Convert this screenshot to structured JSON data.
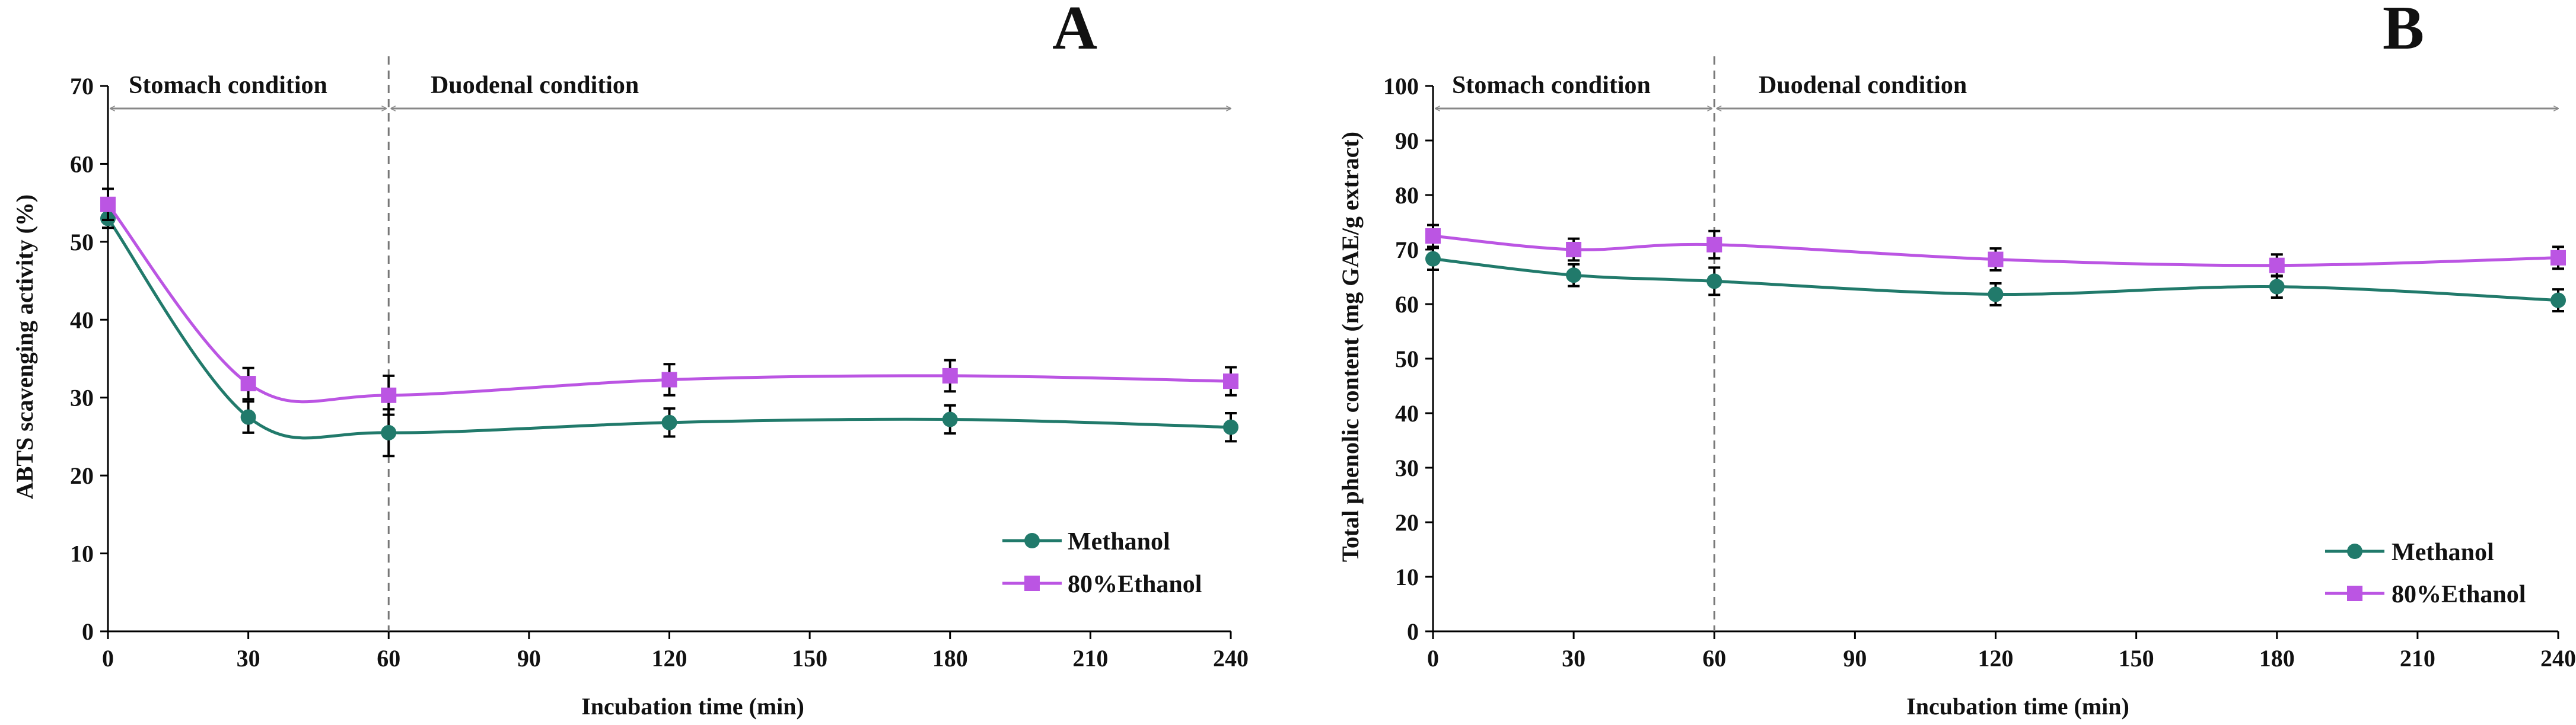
{
  "colors": {
    "methanol": "#217a6b",
    "ethanol": "#bb55e3",
    "axis": "#000000",
    "divider": "#777777",
    "arrow": "#888888"
  },
  "chart_data": [
    {
      "panel": "A",
      "type": "line",
      "xlabel": "Incubation time (min)",
      "ylabel": "ABTS scavenging activity (%)",
      "xlim": [
        0,
        240
      ],
      "ylim": [
        0,
        70
      ],
      "xticks": [
        0,
        30,
        60,
        90,
        120,
        150,
        180,
        210,
        240
      ],
      "yticks": [
        0,
        10,
        20,
        30,
        40,
        50,
        60,
        70
      ],
      "grid": false,
      "legend_position": "bottom-right",
      "divider_x": 60,
      "stomach_label": "Stomach  condition",
      "duodenal_label": "Duodenal condition",
      "series": [
        {
          "name": "Methanol",
          "marker": "circle",
          "x": [
            0,
            30,
            60,
            120,
            180,
            240
          ],
          "values": [
            53,
            27.5,
            25.5,
            26.8,
            27.2,
            26.2
          ],
          "errors": [
            1.2,
            2.0,
            3.0,
            1.8,
            1.8,
            1.8
          ]
        },
        {
          "name": "80%Ethanol",
          "marker": "square",
          "x": [
            0,
            30,
            60,
            120,
            180,
            240
          ],
          "values": [
            54.8,
            31.8,
            30.3,
            32.3,
            32.8,
            32.1
          ],
          "errors": [
            2.0,
            2.0,
            2.5,
            2.0,
            2.0,
            1.8
          ]
        }
      ]
    },
    {
      "panel": "B",
      "type": "line",
      "xlabel": "Incubation time (min)",
      "ylabel": "Total phenolic content (mg GAE/g extract)",
      "xlim": [
        0,
        240
      ],
      "ylim": [
        0,
        100
      ],
      "xticks": [
        0,
        30,
        60,
        90,
        120,
        150,
        180,
        210,
        240
      ],
      "yticks": [
        0,
        10,
        20,
        30,
        40,
        50,
        60,
        70,
        80,
        90,
        100
      ],
      "grid": false,
      "legend_position": "bottom-right",
      "divider_x": 60,
      "stomach_label": "Stomach  condition",
      "duodenal_label": "Duodenal condition",
      "series": [
        {
          "name": "Methanol",
          "marker": "circle",
          "x": [
            0,
            30,
            60,
            120,
            180,
            240
          ],
          "values": [
            68.3,
            65.3,
            64.2,
            61.8,
            63.2,
            60.7
          ],
          "errors": [
            2.0,
            2.0,
            2.5,
            2.0,
            2.0,
            2.0
          ]
        },
        {
          "name": "80%Ethanol",
          "marker": "square",
          "x": [
            0,
            30,
            60,
            120,
            180,
            240
          ],
          "values": [
            72.5,
            70.0,
            70.9,
            68.2,
            67.1,
            68.5
          ],
          "errors": [
            2.0,
            2.0,
            2.5,
            2.0,
            2.0,
            2.0
          ]
        }
      ]
    }
  ]
}
